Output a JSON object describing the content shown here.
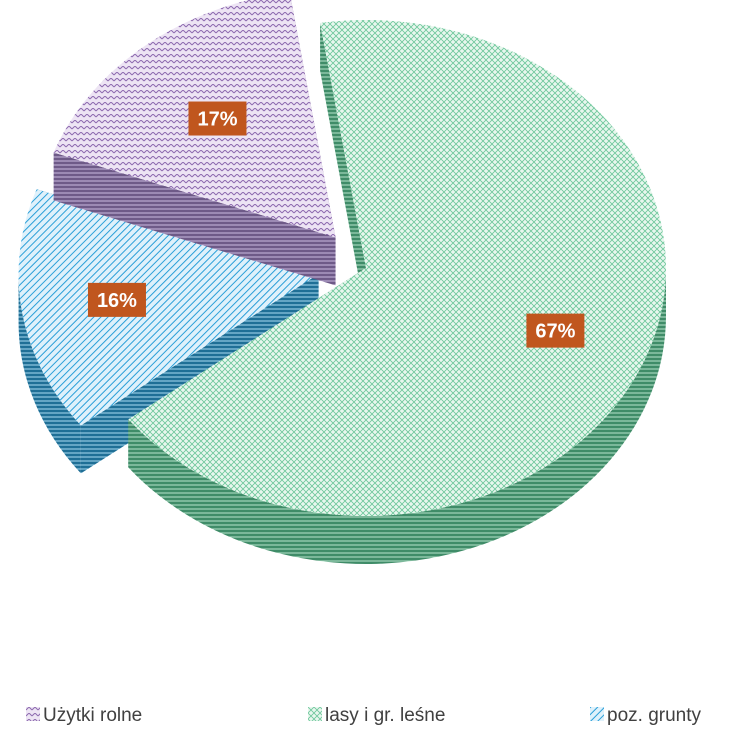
{
  "chart_data": {
    "type": "pie",
    "style": "3d-exploded",
    "categories": [
      "Użytki rolne",
      "lasy i gr. leśne",
      "poz. grunty"
    ],
    "values": [
      17,
      67,
      16
    ],
    "data_labels": [
      "17%",
      "67%",
      "16%"
    ],
    "colors": [
      "#a98bc4",
      "#5fbf8f",
      "#2f9fd6"
    ],
    "label_bg_color": "#c0561e",
    "legend_position": "bottom"
  },
  "legend": {
    "items": [
      {
        "label": "Użytki rolne",
        "color": "#a98bc4",
        "icon": "purple-hatch-swatch"
      },
      {
        "label": "lasy i gr. leśne",
        "color": "#5fbf8f",
        "icon": "green-hatch-swatch"
      },
      {
        "label": "poz. grunty",
        "color": "#2f9fd6",
        "icon": "blue-hatch-swatch"
      }
    ]
  }
}
